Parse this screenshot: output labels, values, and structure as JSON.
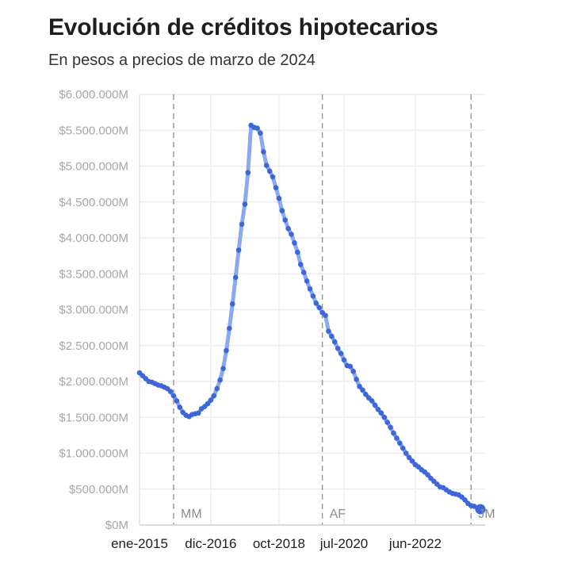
{
  "chart_data": {
    "type": "line",
    "title": "Evolución de créditos hipotecarios",
    "subtitle": "En pesos a precios de marzo de 2024",
    "xlabel": "",
    "ylabel": "",
    "ylim": [
      0,
      6000000
    ],
    "yticks": [
      {
        "value": 0,
        "label": "$0M"
      },
      {
        "value": 500000,
        "label": "$500.000M"
      },
      {
        "value": 1000000,
        "label": "$1.000.000M"
      },
      {
        "value": 1500000,
        "label": "$1.500.000M"
      },
      {
        "value": 2000000,
        "label": "$2.000.000M"
      },
      {
        "value": 2500000,
        "label": "$2.500.000M"
      },
      {
        "value": 3000000,
        "label": "$3.000.000M"
      },
      {
        "value": 3500000,
        "label": "$3.500.000M"
      },
      {
        "value": 4000000,
        "label": "$4.000.000M"
      },
      {
        "value": 4500000,
        "label": "$4.500.000M"
      },
      {
        "value": 5000000,
        "label": "$5.000.000M"
      },
      {
        "value": 5500000,
        "label": "$5.500.000M"
      },
      {
        "value": 6000000,
        "label": "$6.000.000M"
      }
    ],
    "x_start": "2015-01",
    "x_end": "2024-03",
    "xticks": [
      {
        "date": "2015-01",
        "label": "ene-2015"
      },
      {
        "date": "2016-12",
        "label": "dic-2016"
      },
      {
        "date": "2018-10",
        "label": "oct-2018"
      },
      {
        "date": "2020-07",
        "label": "jul-2020"
      },
      {
        "date": "2022-06",
        "label": "jun-2022"
      }
    ],
    "annotations": [
      {
        "date": "2015-12",
        "label": "MM"
      },
      {
        "date": "2019-12",
        "label": "AF"
      },
      {
        "date": "2023-12",
        "label": "JM"
      }
    ],
    "grid": true,
    "colors": {
      "line": "#8ba9ee",
      "point": "#3d67d9",
      "grid": "#ececec",
      "annotation_line": "#9a9a9a"
    },
    "series": [
      {
        "x": [
          "2015-01",
          "2015-02",
          "2015-03",
          "2015-04",
          "2015-05",
          "2015-06",
          "2015-07",
          "2015-08",
          "2015-09",
          "2015-10",
          "2015-11",
          "2015-12",
          "2016-01",
          "2016-02",
          "2016-03",
          "2016-04",
          "2016-05",
          "2016-06",
          "2016-07",
          "2016-08",
          "2016-09",
          "2016-10",
          "2016-11",
          "2016-12",
          "2017-01",
          "2017-02",
          "2017-03",
          "2017-04",
          "2017-05",
          "2017-06",
          "2017-07",
          "2017-08",
          "2017-09",
          "2017-10",
          "2017-11",
          "2017-12",
          "2018-01",
          "2018-02",
          "2018-03",
          "2018-04",
          "2018-05",
          "2018-06",
          "2018-07",
          "2018-08",
          "2018-09",
          "2018-10",
          "2018-11",
          "2018-12",
          "2019-01",
          "2019-02",
          "2019-03",
          "2019-04",
          "2019-05",
          "2019-06",
          "2019-07",
          "2019-08",
          "2019-09",
          "2019-10",
          "2019-11",
          "2019-12",
          "2020-01",
          "2020-02",
          "2020-03",
          "2020-04",
          "2020-05",
          "2020-06",
          "2020-07",
          "2020-08",
          "2020-09",
          "2020-10",
          "2020-11",
          "2020-12",
          "2021-01",
          "2021-02",
          "2021-03",
          "2021-04",
          "2021-05",
          "2021-06",
          "2021-07",
          "2021-08",
          "2021-09",
          "2021-10",
          "2021-11",
          "2021-12",
          "2022-01",
          "2022-02",
          "2022-03",
          "2022-04",
          "2022-05",
          "2022-06",
          "2022-07",
          "2022-08",
          "2022-09",
          "2022-10",
          "2022-11",
          "2022-12",
          "2023-01",
          "2023-02",
          "2023-03",
          "2023-04",
          "2023-05",
          "2023-06",
          "2023-07",
          "2023-08",
          "2023-09",
          "2023-10",
          "2023-11",
          "2023-12",
          "2024-01",
          "2024-02",
          "2024-03"
        ],
        "y": [
          2120000,
          2080000,
          2040000,
          2000000,
          1990000,
          1970000,
          1950000,
          1940000,
          1920000,
          1900000,
          1860000,
          1800000,
          1730000,
          1640000,
          1570000,
          1530000,
          1510000,
          1540000,
          1550000,
          1560000,
          1620000,
          1650000,
          1690000,
          1740000,
          1800000,
          1900000,
          2020000,
          2180000,
          2430000,
          2740000,
          3080000,
          3450000,
          3830000,
          4190000,
          4470000,
          4910000,
          5570000,
          5540000,
          5530000,
          5460000,
          5200000,
          5010000,
          4930000,
          4850000,
          4700000,
          4550000,
          4380000,
          4250000,
          4130000,
          4050000,
          3930000,
          3800000,
          3630000,
          3520000,
          3400000,
          3290000,
          3190000,
          3090000,
          3030000,
          2960000,
          2920000,
          2700000,
          2630000,
          2550000,
          2460000,
          2390000,
          2300000,
          2220000,
          2210000,
          2140000,
          2030000,
          1930000,
          1880000,
          1820000,
          1770000,
          1730000,
          1670000,
          1610000,
          1560000,
          1500000,
          1430000,
          1360000,
          1280000,
          1210000,
          1140000,
          1070000,
          1000000,
          940000,
          890000,
          840000,
          810000,
          770000,
          740000,
          700000,
          650000,
          610000,
          570000,
          530000,
          520000,
          490000,
          460000,
          440000,
          430000,
          420000,
          390000,
          350000,
          300000,
          270000,
          260000,
          240000,
          220000
        ]
      }
    ]
  }
}
